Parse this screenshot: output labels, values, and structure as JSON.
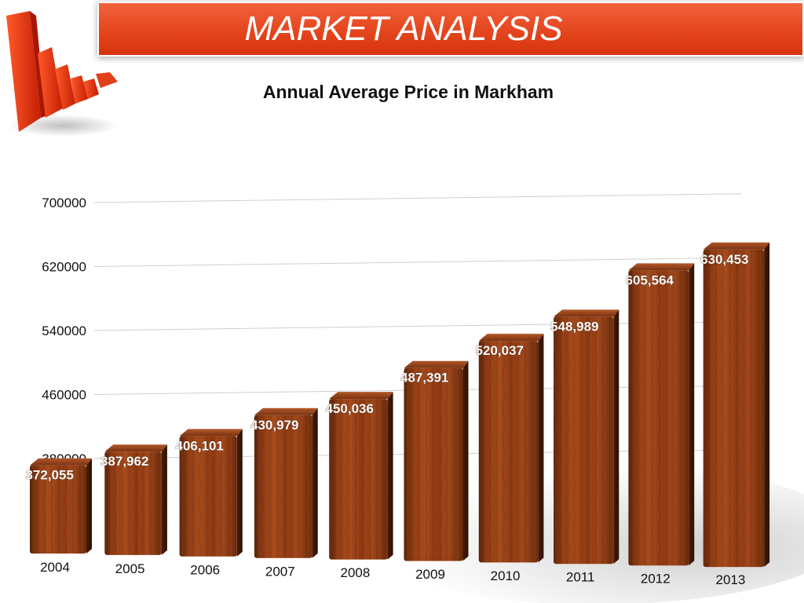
{
  "banner": {
    "title": "MARKET ANALYSIS"
  },
  "chart_data": {
    "type": "bar",
    "title": "Annual Average Price in Markham",
    "xlabel": "",
    "ylabel": "",
    "categories": [
      "2004",
      "2005",
      "2006",
      "2007",
      "2008",
      "2009",
      "2010",
      "2011",
      "2012",
      "2013"
    ],
    "values": [
      372055,
      387962,
      406101,
      430979,
      450036,
      487391,
      520037,
      548989,
      605564,
      630453
    ],
    "data_labels": [
      "372,055",
      "387,962",
      "406,101",
      "430,979",
      "450,036",
      "487,391",
      "520,037",
      "548,989",
      "605,564",
      "630,453"
    ],
    "yticks": [
      "380000",
      "460000",
      "540000",
      "620000",
      "700000"
    ],
    "ytick_values": [
      380000,
      460000,
      540000,
      620000,
      700000
    ],
    "ylim": [
      300000,
      700000
    ],
    "grid": true,
    "legend": "none",
    "bar_color": "#8a3a14",
    "bar_style": "3d-wood"
  }
}
